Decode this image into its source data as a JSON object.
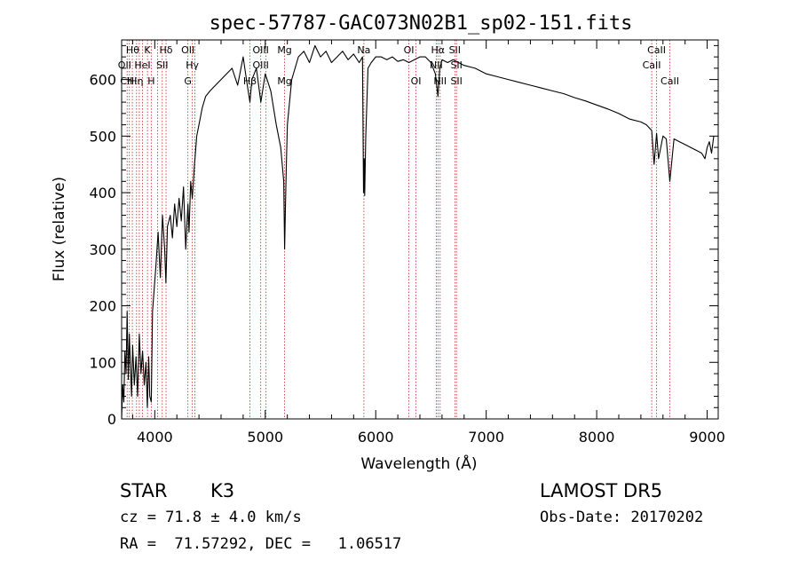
{
  "chart_data": {
    "type": "line",
    "title": "spec-57787-GAC073N02B1_sp02-151.fits",
    "xlabel": "Wavelength (Å)",
    "ylabel": "Flux (relative)",
    "xlim": [
      3700,
      9100
    ],
    "ylim": [
      0,
      670
    ],
    "xticks": [
      4000,
      5000,
      6000,
      7000,
      8000,
      9000
    ],
    "yticks": [
      0,
      100,
      200,
      300,
      400,
      500,
      600
    ],
    "grid": false,
    "series": [
      {
        "x": [
          3700,
          3710,
          3720,
          3730,
          3740,
          3750,
          3760,
          3770,
          3780,
          3790,
          3800,
          3815,
          3830,
          3845,
          3860,
          3875,
          3890,
          3905,
          3920,
          3933,
          3945,
          3955,
          3968,
          3980,
          3995,
          4010,
          4030,
          4050,
          4070,
          4090,
          4101,
          4115,
          4140,
          4160,
          4180,
          4200,
          4220,
          4240,
          4260,
          4280,
          4300,
          4310,
          4325,
          4340,
          4360,
          4380,
          4400,
          4430,
          4460,
          4500,
          4550,
          4600,
          4650,
          4700,
          4750,
          4800,
          4830,
          4861,
          4880,
          4920,
          4960,
          5000,
          5050,
          5100,
          5140,
          5167,
          5175,
          5183,
          5190,
          5200,
          5240,
          5300,
          5350,
          5400,
          5450,
          5500,
          5550,
          5600,
          5650,
          5700,
          5750,
          5800,
          5850,
          5880,
          5890,
          5896,
          5900,
          5910,
          5930,
          5960,
          6000,
          6050,
          6100,
          6150,
          6200,
          6250,
          6300,
          6350,
          6400,
          6450,
          6500,
          6540,
          6563,
          6580,
          6600,
          6650,
          6700,
          6750,
          6800,
          6900,
          7000,
          7100,
          7200,
          7300,
          7400,
          7500,
          7600,
          7700,
          7800,
          7900,
          8000,
          8100,
          8200,
          8300,
          8400,
          8450,
          8498,
          8520,
          8542,
          8560,
          8600,
          8630,
          8662,
          8700,
          8750,
          8800,
          8850,
          8900,
          8950,
          8980,
          9000,
          9020,
          9040,
          9060
        ],
        "y": [
          0,
          60,
          30,
          120,
          80,
          190,
          70,
          150,
          90,
          40,
          130,
          60,
          110,
          40,
          150,
          80,
          120,
          60,
          100,
          20,
          110,
          40,
          30,
          190,
          230,
          270,
          330,
          250,
          360,
          300,
          240,
          340,
          360,
          320,
          380,
          340,
          390,
          350,
          410,
          300,
          380,
          330,
          420,
          390,
          450,
          500,
          520,
          550,
          570,
          580,
          590,
          600,
          610,
          620,
          590,
          640,
          600,
          560,
          600,
          620,
          560,
          610,
          580,
          520,
          480,
          420,
          300,
          380,
          440,
          520,
          600,
          640,
          650,
          630,
          660,
          640,
          650,
          630,
          640,
          650,
          635,
          645,
          630,
          640,
          400,
          460,
          395,
          500,
          620,
          630,
          640,
          640,
          635,
          640,
          632,
          635,
          630,
          635,
          640,
          640,
          630,
          610,
          570,
          620,
          635,
          630,
          635,
          630,
          625,
          620,
          610,
          605,
          600,
          595,
          590,
          585,
          580,
          575,
          568,
          562,
          555,
          548,
          540,
          530,
          525,
          520,
          510,
          450,
          505,
          460,
          500,
          495,
          420,
          495,
          490,
          485,
          480,
          475,
          470,
          460,
          480,
          490,
          470,
          500
        ]
      }
    ],
    "lines": {
      "color": "#cc2020",
      "positions": [
        3750,
        3770,
        3797,
        3835,
        3860,
        3889,
        3934,
        3968,
        4026,
        4068,
        4102,
        4300,
        4340,
        4363,
        4861,
        4959,
        5007,
        5175,
        5893,
        6300,
        6364,
        6548,
        6563,
        6583,
        6716,
        6731,
        8498,
        8542,
        8662
      ],
      "labels": [
        {
          "text": "Hθ",
          "x": 3800,
          "row": 1
        },
        {
          "text": "K",
          "x": 3933,
          "row": 1
        },
        {
          "text": "Hδ",
          "x": 4102,
          "row": 1
        },
        {
          "text": "OII",
          "x": 4300,
          "row": 1
        },
        {
          "text": "OIII",
          "x": 4959,
          "row": 1
        },
        {
          "text": "Mg",
          "x": 5175,
          "row": 1
        },
        {
          "text": "Na",
          "x": 5893,
          "row": 1
        },
        {
          "text": "OI",
          "x": 6300,
          "row": 1
        },
        {
          "text": "Hα",
          "x": 6563,
          "row": 1
        },
        {
          "text": "SII",
          "x": 6716,
          "row": 1
        },
        {
          "text": "CaII",
          "x": 8542,
          "row": 1
        },
        {
          "text": "OII",
          "x": 3727,
          "row": 2
        },
        {
          "text": "HeI",
          "x": 3889,
          "row": 2
        },
        {
          "text": "SII",
          "x": 4068,
          "row": 2
        },
        {
          "text": "Hγ",
          "x": 4340,
          "row": 2
        },
        {
          "text": "OIII",
          "x": 4959,
          "row": 2
        },
        {
          "text": "NII",
          "x": 6548,
          "row": 2
        },
        {
          "text": "SII",
          "x": 6731,
          "row": 2
        },
        {
          "text": "CaII",
          "x": 8498,
          "row": 2
        },
        {
          "text": "CH",
          "x": 3750,
          "row": 3
        },
        {
          "text": "Hη",
          "x": 3835,
          "row": 3
        },
        {
          "text": "H",
          "x": 3968,
          "row": 3
        },
        {
          "text": "G",
          "x": 4300,
          "row": 3
        },
        {
          "text": "Hβ",
          "x": 4861,
          "row": 3
        },
        {
          "text": "Mg",
          "x": 5175,
          "row": 3
        },
        {
          "text": "OI",
          "x": 6364,
          "row": 3
        },
        {
          "text": "NII",
          "x": 6583,
          "row": 3
        },
        {
          "text": "SII",
          "x": 6731,
          "row": 3
        },
        {
          "text": "CaII",
          "x": 8662,
          "row": 3
        }
      ]
    }
  },
  "info": {
    "object_type": "STAR",
    "subclass": "K3",
    "survey": "LAMOST DR5",
    "cz": "cz = 71.8 ± 4.0 km/s",
    "obs_date": "Obs-Date: 20170202",
    "coords": "RA =  71.57292, DEC =   1.06517"
  }
}
